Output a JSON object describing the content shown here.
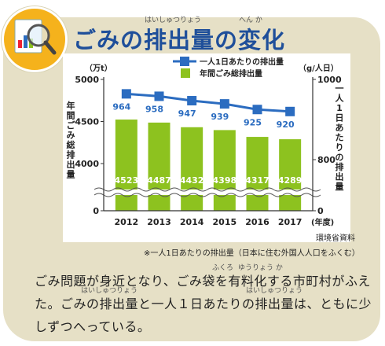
{
  "heading": {
    "title": "ごみの排出量の変化",
    "ruby_haishutsuryou": "はいしゅつりょう",
    "ruby_henka": "へん か"
  },
  "source": "環境省資料",
  "footnote": "※一人1日あたりの排出量（日本に住む外国人人口をふくむ）",
  "body": {
    "line1": "ごみ問題が身近となり、ごみ袋を有料化する市町村がふえ",
    "line2": "た。ごみの排出量と一人１日あたりの排出量は、ともに少",
    "line3": "しずつへっている。",
    "ruby_fukuro": "ふくろ",
    "ruby_yuuryouka": "ゆうりょう か",
    "ruby_haishutsu1": "はいしゅつりょう",
    "ruby_haishutsu2": "はいしゅつりょう"
  },
  "colors": {
    "bar": "#8dc21f",
    "line": "#2b6cc0",
    "title": "#1f4f9a",
    "card": "#e6e0c6",
    "badge": "#f5b21c"
  },
  "chart_data": {
    "type": "bar+line",
    "categories": [
      "2012",
      "2013",
      "2014",
      "2015",
      "2016",
      "2017"
    ],
    "x_unit_label": "(年度)",
    "series": [
      {
        "name": "年間ごみ総排出量",
        "type": "bar",
        "axis": "left",
        "values": [
          4523,
          4487,
          4432,
          4398,
          4317,
          4289
        ]
      },
      {
        "name": "一人1日あたりの排出量",
        "type": "line",
        "axis": "right",
        "values": [
          964,
          958,
          947,
          939,
          925,
          920
        ]
      }
    ],
    "left_axis": {
      "unit": "（万t）",
      "label": "年間ごみ総排出量",
      "ticks": [
        "5000",
        "4500",
        "4000",
        "0"
      ],
      "axis_break": true
    },
    "right_axis": {
      "unit": "（g/人日）",
      "label": "一人1日あたりの排出量",
      "ticks": [
        "1000",
        "800",
        "0"
      ],
      "axis_break": true
    },
    "legend_position": "top",
    "grid": false
  }
}
